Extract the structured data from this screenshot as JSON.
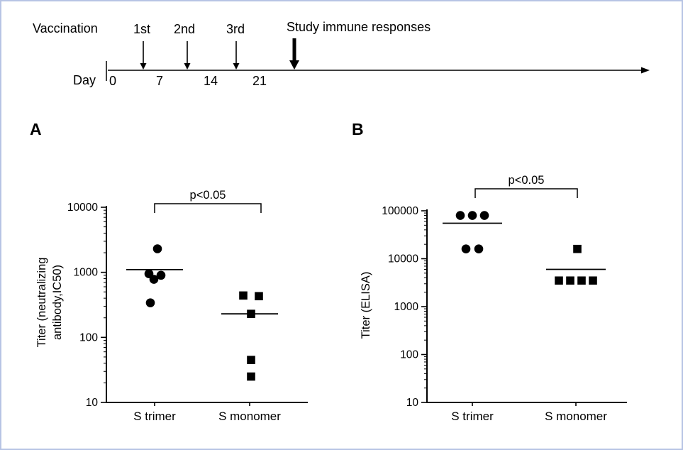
{
  "timeline": {
    "vaccination_label": "Vaccination",
    "doses": [
      "1st",
      "2nd",
      "3rd"
    ],
    "study_label": "Study immune responses",
    "day_label": "Day",
    "day_ticks": [
      "0",
      "7",
      "14",
      "21"
    ]
  },
  "panels": [
    {
      "label": "A"
    },
    {
      "label": "B"
    }
  ],
  "chart_data": [
    {
      "panel": "A",
      "type": "scatter",
      "yscale": "log",
      "ylim": [
        10,
        10000
      ],
      "yticks": [
        10,
        100,
        1000,
        10000
      ],
      "ylabel_lines": [
        "Titer (neutralizing",
        "antibody,IC50)"
      ],
      "categories": [
        "S trimer",
        "S monomer"
      ],
      "significance": "p<0.05",
      "legend": "none",
      "grid": false,
      "series": [
        {
          "name": "S trimer",
          "marker": "circle",
          "values": [
            2300,
            950,
            900,
            780,
            340
          ],
          "x_offsets": [
            4,
            -8,
            9,
            -1,
            -6
          ],
          "mean": 1100
        },
        {
          "name": "S monomer",
          "marker": "square",
          "values": [
            440,
            430,
            230,
            45,
            25
          ],
          "x_offsets": [
            -9,
            13,
            2,
            2,
            2
          ],
          "mean": 230
        }
      ]
    },
    {
      "panel": "B",
      "type": "scatter",
      "yscale": "log",
      "ylim": [
        10,
        100000
      ],
      "yticks": [
        10,
        100,
        1000,
        10000,
        100000
      ],
      "ylabel_lines": [
        "Titer (ELISA)"
      ],
      "categories": [
        "S trimer",
        "S monomer"
      ],
      "significance": "p<0.05",
      "legend": "none",
      "grid": false,
      "series": [
        {
          "name": "S trimer",
          "marker": "circle",
          "values": [
            80000,
            80000,
            80000,
            16000,
            16000
          ],
          "x_offsets": [
            -17,
            0,
            17,
            -9,
            9
          ],
          "mean": 55000
        },
        {
          "name": "S monomer",
          "marker": "square",
          "values": [
            16000,
            3500,
            3500,
            3500,
            3500
          ],
          "x_offsets": [
            2,
            -24,
            -8,
            8,
            24
          ],
          "mean": 6000
        }
      ]
    }
  ]
}
